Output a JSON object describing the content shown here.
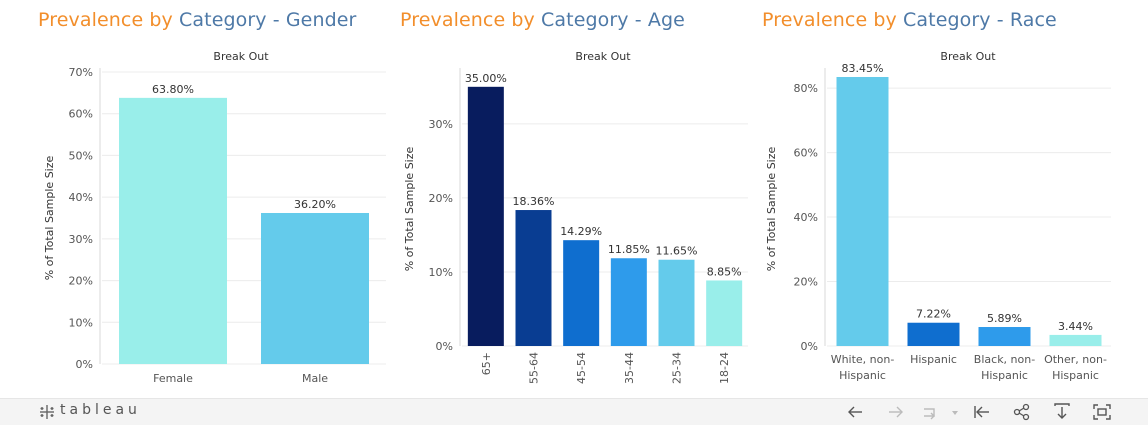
{
  "panels": [
    {
      "title_prefix": "Prevalence by ",
      "title_suffix": "Category - Gender",
      "subtitle": "Break Out",
      "ylabel": "% of Total Sample Size"
    },
    {
      "title_prefix": "Prevalence by ",
      "title_suffix": "Category - Age",
      "subtitle": "Break Out",
      "ylabel": "% of Total Sample Size"
    },
    {
      "title_prefix": "Prevalence by ",
      "title_suffix": "Category - Race",
      "subtitle": "Break Out",
      "ylabel": "% of Total Sample Size"
    }
  ],
  "chart_data": [
    {
      "type": "bar",
      "title": "Prevalence by Category - Gender",
      "subtitle": "Break Out",
      "ylabel": "% of Total Sample Size",
      "categories": [
        "Female",
        "Male"
      ],
      "values": [
        63.8,
        36.2
      ],
      "labels": [
        "63.80%",
        "36.20%"
      ],
      "ylim": [
        0,
        70
      ],
      "yticks": [
        0,
        10,
        20,
        30,
        40,
        50,
        60,
        70
      ],
      "ytick_labels": [
        "0%",
        "10%",
        "20%",
        "30%",
        "40%",
        "50%",
        "60%",
        "70%"
      ],
      "colors": [
        "#99eeea",
        "#64cbeb"
      ],
      "grid": true
    },
    {
      "type": "bar",
      "title": "Prevalence by Category - Age",
      "subtitle": "Break Out",
      "ylabel": "% of Total Sample Size",
      "categories": [
        "65+",
        "55-64",
        "45-54",
        "35-44",
        "25-34",
        "18-24"
      ],
      "values": [
        35.0,
        18.36,
        14.29,
        11.85,
        11.65,
        8.85
      ],
      "labels": [
        "35.00%",
        "18.36%",
        "14.29%",
        "11.85%",
        "11.65%",
        "8.85%"
      ],
      "ylim": [
        0,
        37
      ],
      "yticks": [
        0,
        10,
        20,
        30
      ],
      "ytick_labels": [
        "0%",
        "10%",
        "20%",
        "30%"
      ],
      "colors": [
        "#081c5e",
        "#093d92",
        "#0f6ecf",
        "#2e9beb",
        "#64cbeb",
        "#99eeea"
      ],
      "rotate_x_labels": true,
      "grid": true
    },
    {
      "type": "bar",
      "title": "Prevalence by Category - Race",
      "subtitle": "Break Out",
      "ylabel": "% of Total Sample Size",
      "categories": [
        [
          "White, non-",
          "Hispanic"
        ],
        [
          "Hispanic"
        ],
        [
          "Black, non-",
          "Hispanic"
        ],
        [
          "Other, non-",
          "Hispanic"
        ]
      ],
      "values": [
        83.45,
        7.22,
        5.89,
        3.44
      ],
      "labels": [
        "83.45%",
        "7.22%",
        "5.89%",
        "3.44%"
      ],
      "ylim": [
        0,
        85
      ],
      "yticks": [
        0,
        20,
        40,
        60,
        80
      ],
      "ytick_labels": [
        "0%",
        "20%",
        "40%",
        "60%",
        "80%"
      ],
      "colors": [
        "#64cbeb",
        "#0f6ecf",
        "#2e9beb",
        "#99eeea"
      ],
      "grid": true
    }
  ],
  "toolbar": {
    "brand": "tableau",
    "icons": [
      "undo-icon",
      "redo-icon",
      "revert-icon",
      "reset-icon",
      "share-icon",
      "download-icon",
      "fullscreen-icon"
    ]
  }
}
